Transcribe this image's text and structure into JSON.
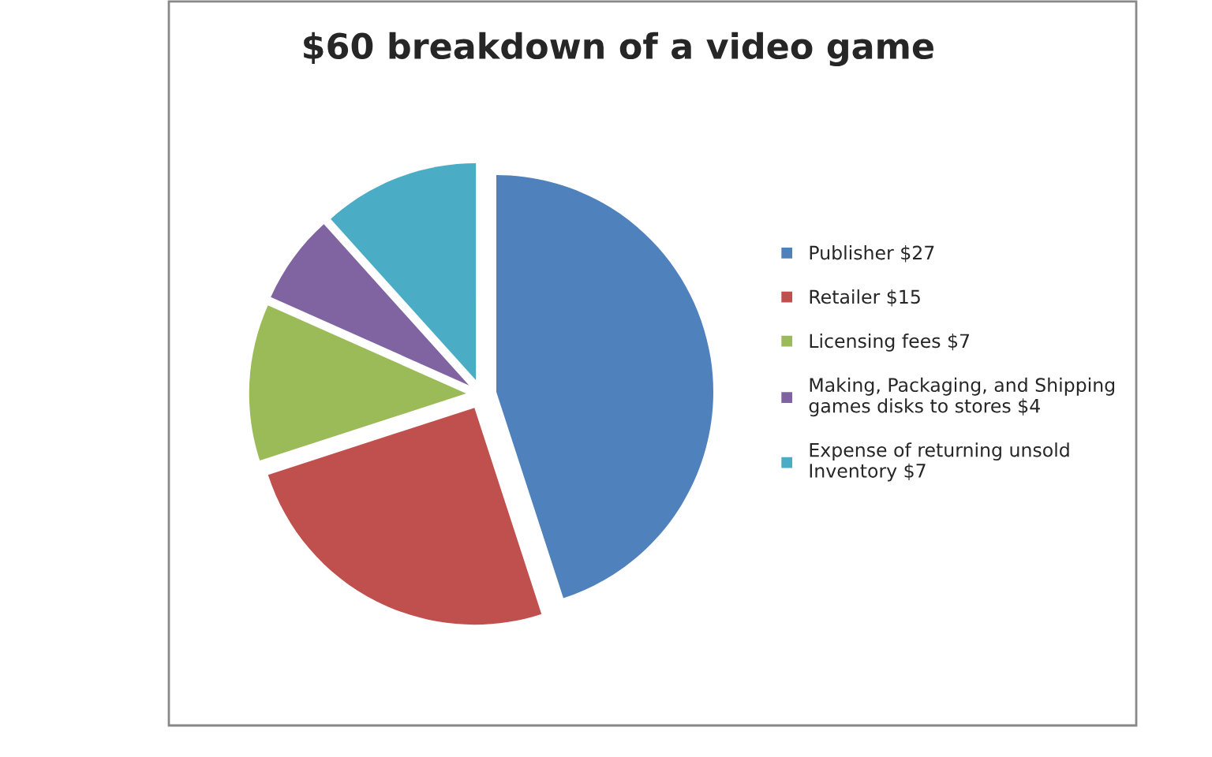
{
  "chart_data": {
    "type": "pie",
    "title": "$60 breakdown of a video game",
    "categories": [
      "Publisher $27",
      "Retailer $15",
      "Licensing fees $7",
      "Making, Packaging, and Shipping games disks to stores $4",
      "Expense of returning unsold Inventory $7"
    ],
    "values": [
      27,
      15,
      7,
      4,
      7
    ],
    "colors": [
      "#4f81bd",
      "#c0504d",
      "#9bbb59",
      "#8064a2",
      "#4bacc6"
    ],
    "legend": "right"
  }
}
